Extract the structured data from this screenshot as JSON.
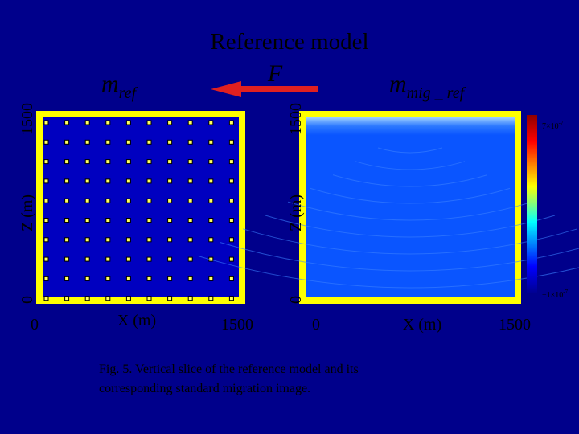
{
  "title": "Reference model",
  "force_label": "F",
  "panels": [
    {
      "symbol": "m",
      "subscript": "ref",
      "x_label": "X (m)",
      "y_label": "Z (m)",
      "x_ticks": [
        "0",
        "1500"
      ],
      "y_ticks": [
        "0",
        "1500"
      ]
    },
    {
      "symbol": "m",
      "subscript": "mig _ ref",
      "x_label": "X (m)",
      "y_label": "Z (m)",
      "x_ticks": [
        "0",
        "1500"
      ],
      "y_ticks": [
        "0",
        "1500"
      ]
    }
  ],
  "colorbar": {
    "max": {
      "base": "7×10",
      "exponent": "-7"
    },
    "min": {
      "base": "−1×10",
      "exponent": "-7"
    }
  },
  "caption": [
    "Fig. 5. Vertical slice of the reference model and its",
    "corresponding standard migration image."
  ]
}
